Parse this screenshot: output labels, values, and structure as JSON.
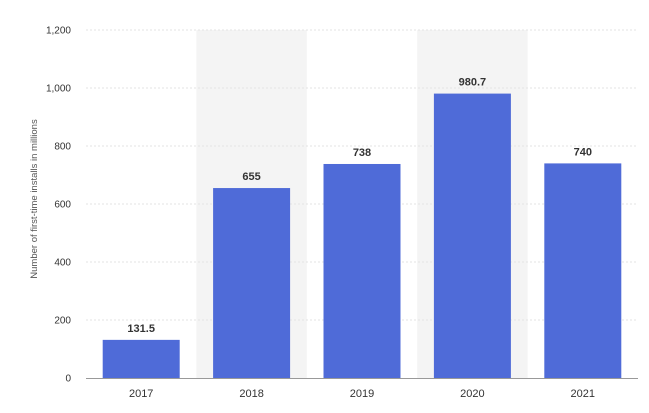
{
  "chart_data": {
    "type": "bar",
    "categories": [
      "2017",
      "2018",
      "2019",
      "2020",
      "2021"
    ],
    "values": [
      131.5,
      655,
      738,
      980.7,
      740
    ],
    "data_labels": [
      "131.5",
      "655",
      "738",
      "980.7",
      "740"
    ],
    "y_ticks": [
      "0",
      "200",
      "400",
      "600",
      "800",
      "1,000",
      "1,200"
    ],
    "y_tick_values": [
      0,
      200,
      400,
      600,
      800,
      1000,
      1200
    ],
    "ylim": [
      0,
      1200
    ],
    "ylabel": "Number of first-time installs in millions",
    "xlabel": "",
    "title": "",
    "grid": true,
    "legend": "none",
    "bar_color": "#4f6bd8",
    "alternate_band_color": "#f4f4f4"
  }
}
